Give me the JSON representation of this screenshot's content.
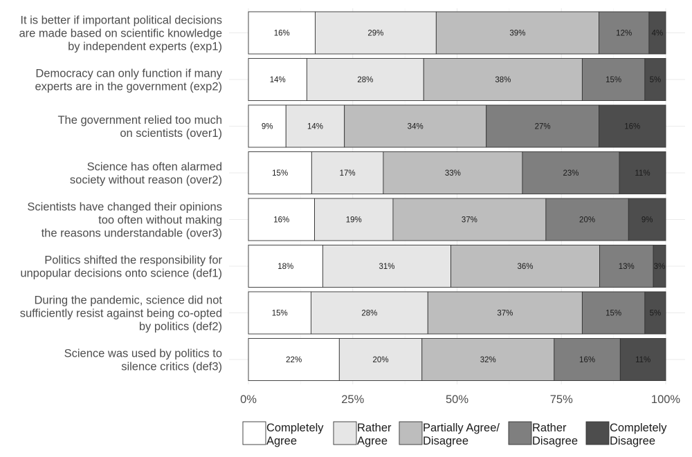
{
  "chart_data": {
    "type": "bar",
    "orientation": "horizontal-stacked-percent",
    "categories": [
      [
        "It is better if important political decisions",
        "are made based on scientific knowledge",
        "by independent experts (exp1)"
      ],
      [
        "Democracy can only function if many",
        "experts are in the government (exp2)"
      ],
      [
        "The government relied too much",
        "on scientists (over1)"
      ],
      [
        "Science has often alarmed",
        "society without reason (over2)"
      ],
      [
        "Scientists have changed their opinions",
        "too often without making",
        "the reasons understandable (over3)"
      ],
      [
        "Politics shifted the responsibility for",
        "unpopular decisions onto science (def1)"
      ],
      [
        "During the pandemic, science did not",
        "sufficiently resist against being co-opted",
        "by politics (def2)"
      ],
      [
        "Science was used by politics to",
        "silence critics (def3)"
      ]
    ],
    "series": [
      {
        "name": [
          "Completely",
          "Agree"
        ],
        "color": "#ffffff",
        "values": [
          16,
          14,
          9,
          15,
          16,
          18,
          15,
          22
        ],
        "labels": [
          "16%",
          "14%",
          "9%",
          "15%",
          "16%",
          "18%",
          "15%",
          "22%"
        ]
      },
      {
        "name": [
          "Rather",
          "Agree"
        ],
        "color": "#e6e6e6",
        "values": [
          29,
          28,
          14,
          17,
          19,
          31,
          28,
          20
        ],
        "labels": [
          "29%",
          "28%",
          "14%",
          "17%",
          "19%",
          "31%",
          "28%",
          "20%"
        ]
      },
      {
        "name": [
          "Partially Agree/",
          "Disagree"
        ],
        "color": "#bdbdbd",
        "values": [
          39,
          38,
          34,
          33,
          37,
          36,
          37,
          32
        ],
        "labels": [
          "39%",
          "38%",
          "34%",
          "33%",
          "37%",
          "36%",
          "37%",
          "32%"
        ]
      },
      {
        "name": [
          "Rather",
          "Disagree"
        ],
        "color": "#7f7f7f",
        "values": [
          12,
          15,
          27,
          23,
          20,
          13,
          15,
          16
        ],
        "labels": [
          "12%",
          "15%",
          "27%",
          "23%",
          "20%",
          "13%",
          "15%",
          "16%"
        ]
      },
      {
        "name": [
          "Completely",
          "Disagree"
        ],
        "color": "#4d4d4d",
        "values": [
          4,
          5,
          16,
          11,
          9,
          3,
          5,
          11
        ],
        "labels": [
          "4%",
          "5%",
          "16%",
          "11%",
          "9%",
          "3%",
          "5%",
          "11%"
        ]
      }
    ],
    "x_ticks": [
      "0%",
      "25%",
      "50%",
      "75%",
      "100%"
    ],
    "xlim": [
      0,
      100
    ],
    "title": "",
    "xlabel": "",
    "ylabel": "",
    "legend_position": "bottom",
    "grid": true
  }
}
